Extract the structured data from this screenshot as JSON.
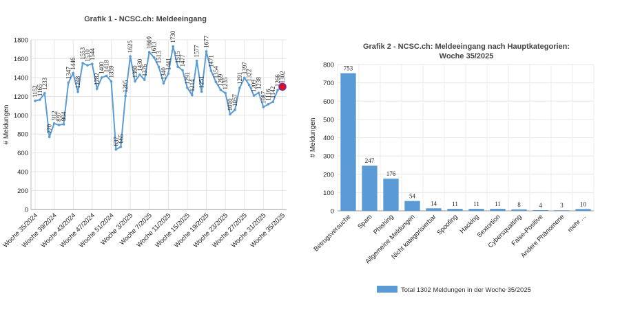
{
  "chart_data": [
    {
      "type": "line",
      "title": "Grafik 1 - NCSC.ch: Meldeeingang",
      "xlabel": "",
      "ylabel": "# Meldungen",
      "ylim": [
        0,
        1800
      ],
      "yticks": [
        0,
        200,
        400,
        600,
        800,
        1000,
        1200,
        1400,
        1600,
        1800
      ],
      "grid": true,
      "x_tick_labels": [
        "Woche 35/2024",
        "Woche 39/2024",
        "Woche 43/2024",
        "Woche 47/2024",
        "Woche 51/2024",
        "Woche 3/2025",
        "Woche 7/2025",
        "Woche 11/2025",
        "Woche 15/2025",
        "Woche 19/2025",
        "Woche 23/2025",
        "Woche 27/2025",
        "Woche 31/2025",
        "Woche 35/2025"
      ],
      "x_tick_every": 4,
      "series": [
        {
          "color": "#5a9bd5",
          "highlight_color": "#d9141c",
          "values": [
            1152,
            1165,
            1233,
            770,
            912,
            897,
            904,
            1347,
            1446,
            1248,
            1553,
            1530,
            1544,
            1282,
            1400,
            1418,
            1359,
            637,
            665,
            1205,
            1625,
            1360,
            1430,
            1376,
            1669,
            1613,
            1513,
            1340,
            1441,
            1730,
            1515,
            1477,
            1291,
            1214,
            1577,
            1251,
            1677,
            1471,
            1354,
            1269,
            1235,
            1010,
            1057,
            1291,
            1397,
            1322,
            1209,
            1238,
            1087,
            1116,
            1142,
            1266,
            1302
          ]
        }
      ]
    },
    {
      "type": "bar",
      "title": "Grafik 2 - NCSC.ch: Meldeeingang nach Hauptkategorien:",
      "subtitle": "Woche 35/2025",
      "xlabel": "",
      "ylabel": "# Meldungen",
      "ylim": [
        0,
        800
      ],
      "yticks": [
        0,
        100,
        200,
        300,
        400,
        500,
        600,
        700,
        800
      ],
      "grid": true,
      "categories": [
        "Betrugsversuche",
        "Spam",
        "Phishing",
        "Allgemeine Meldungen",
        "Nicht kategorisierbar",
        "Spoofing",
        "Hacking",
        "Sextortion",
        "Cybersquatting",
        "False-Positive",
        "Andere Phänomene",
        "mehr ..."
      ],
      "series": [
        {
          "name": "Total 1302 Meldungen in der Woche 35/2025",
          "color": "#5a9bd5",
          "values": [
            753,
            247,
            176,
            54,
            14,
            11,
            11,
            11,
            8,
            4,
            3,
            10
          ]
        }
      ],
      "legend": "bottom"
    }
  ]
}
